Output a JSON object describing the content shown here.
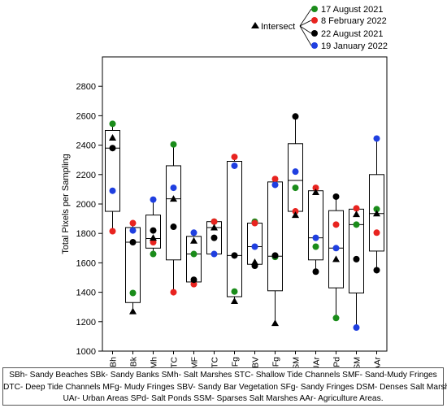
{
  "chart_data": {
    "type": "box",
    "title": "",
    "xlabel": "",
    "ylabel": "Total Pixels per Sampling",
    "ylim": [
      1000,
      3000
    ],
    "yticks": [
      1000,
      1200,
      1400,
      1600,
      1800,
      2000,
      2200,
      2400,
      2600,
      2800
    ],
    "grid": false,
    "legend_position": "top-right",
    "categories": [
      "SBh",
      "SBk",
      "SMh",
      "STC",
      "SMF",
      "DTC",
      "MFg",
      "SBV",
      "SFg",
      "DSM",
      "UAr",
      "SPd",
      "SSM",
      "AAr"
    ],
    "legend": {
      "intersect_label": "Intersect",
      "entries": [
        "17 August 2021",
        "8 February 2022",
        "22 August 2021",
        "19 January 2022"
      ]
    },
    "series": [
      {
        "name": "17 August 2021",
        "color": "#1a8c1a",
        "values": [
          2545,
          1395,
          1660,
          2405,
          1660,
          1880,
          1405,
          1880,
          1640,
          2110,
          1710,
          1225,
          1860,
          1965
        ]
      },
      {
        "name": "8 February 2022",
        "color": "#e8231f",
        "values": [
          1815,
          1870,
          1740,
          1400,
          1455,
          1880,
          2320,
          1870,
          2170,
          1950,
          2110,
          1860,
          1970,
          1805
        ]
      },
      {
        "name": "22 August 2021",
        "color": "#000000",
        "values": [
          2380,
          1740,
          1820,
          1845,
          1485,
          1770,
          1650,
          1580,
          1650,
          2595,
          1540,
          2050,
          1625,
          1550
        ]
      },
      {
        "name": "19 January 2022",
        "color": "#1f3fe0",
        "values": [
          2090,
          1820,
          2030,
          2110,
          1805,
          1660,
          2260,
          1710,
          2130,
          2220,
          1770,
          1700,
          1160,
          2445
        ]
      }
    ],
    "intersect": [
      2450,
      1270,
      1770,
      2035,
      1750,
      1840,
      1340,
      1605,
      1190,
      1925,
      2080,
      1625,
      1930,
      1935
    ],
    "boxes": [
      {
        "q1": 1950,
        "q3": 2500,
        "median": 2380,
        "whisker_low": 1815,
        "whisker_high": 2545
      },
      {
        "q1": 1330,
        "q3": 1840,
        "median": 1740,
        "whisker_low": 1270,
        "whisker_high": 1870
      },
      {
        "q1": 1700,
        "q3": 1925,
        "median": 1765,
        "whisker_low": 1660,
        "whisker_high": 2030
      },
      {
        "q1": 1620,
        "q3": 2260,
        "median": 2035,
        "whisker_low": 1400,
        "whisker_high": 2405
      },
      {
        "q1": 1470,
        "q3": 1780,
        "median": 1660,
        "whisker_low": 1455,
        "whisker_high": 1805
      },
      {
        "q1": 1660,
        "q3": 1880,
        "median": 1840,
        "whisker_low": 1660,
        "whisker_high": 1880
      },
      {
        "q1": 1370,
        "q3": 2290,
        "median": 1650,
        "whisker_low": 1340,
        "whisker_high": 2320
      },
      {
        "q1": 1590,
        "q3": 1870,
        "median": 1710,
        "whisker_low": 1580,
        "whisker_high": 1880
      },
      {
        "q1": 1410,
        "q3": 2150,
        "median": 1645,
        "whisker_low": 1190,
        "whisker_high": 2170
      },
      {
        "q1": 1950,
        "q3": 2410,
        "median": 2160,
        "whisker_low": 1925,
        "whisker_high": 2595
      },
      {
        "q1": 1620,
        "q3": 2090,
        "median": 1770,
        "whisker_low": 1540,
        "whisker_high": 2110
      },
      {
        "q1": 1430,
        "q3": 1955,
        "median": 1700,
        "whisker_low": 1225,
        "whisker_high": 2050
      },
      {
        "q1": 1395,
        "q3": 1965,
        "median": 1860,
        "whisker_low": 1160,
        "whisker_high": 1970
      },
      {
        "q1": 1680,
        "q3": 2200,
        "median": 1935,
        "whisker_low": 1550,
        "whisker_high": 2445
      }
    ]
  },
  "footnote": {
    "line1": "SBh- Sandy Beaches SBk- Sandy Banks SMh- Salt Marshes STC- Shallow Tide Channels SMF- Sand-Mudy Fringes",
    "line2": "DTC- Deep Tide Channels MFg- Mudy Fringes SBV- Sandy Bar Vegetation SFg- Sandy Fringes DSM- Denses Salt Marshes",
    "line3": "UAr- Urban Areas SPd- Salt Ponds SSM- Sparses Salt Marshes AAr- Agriculture Areas."
  }
}
